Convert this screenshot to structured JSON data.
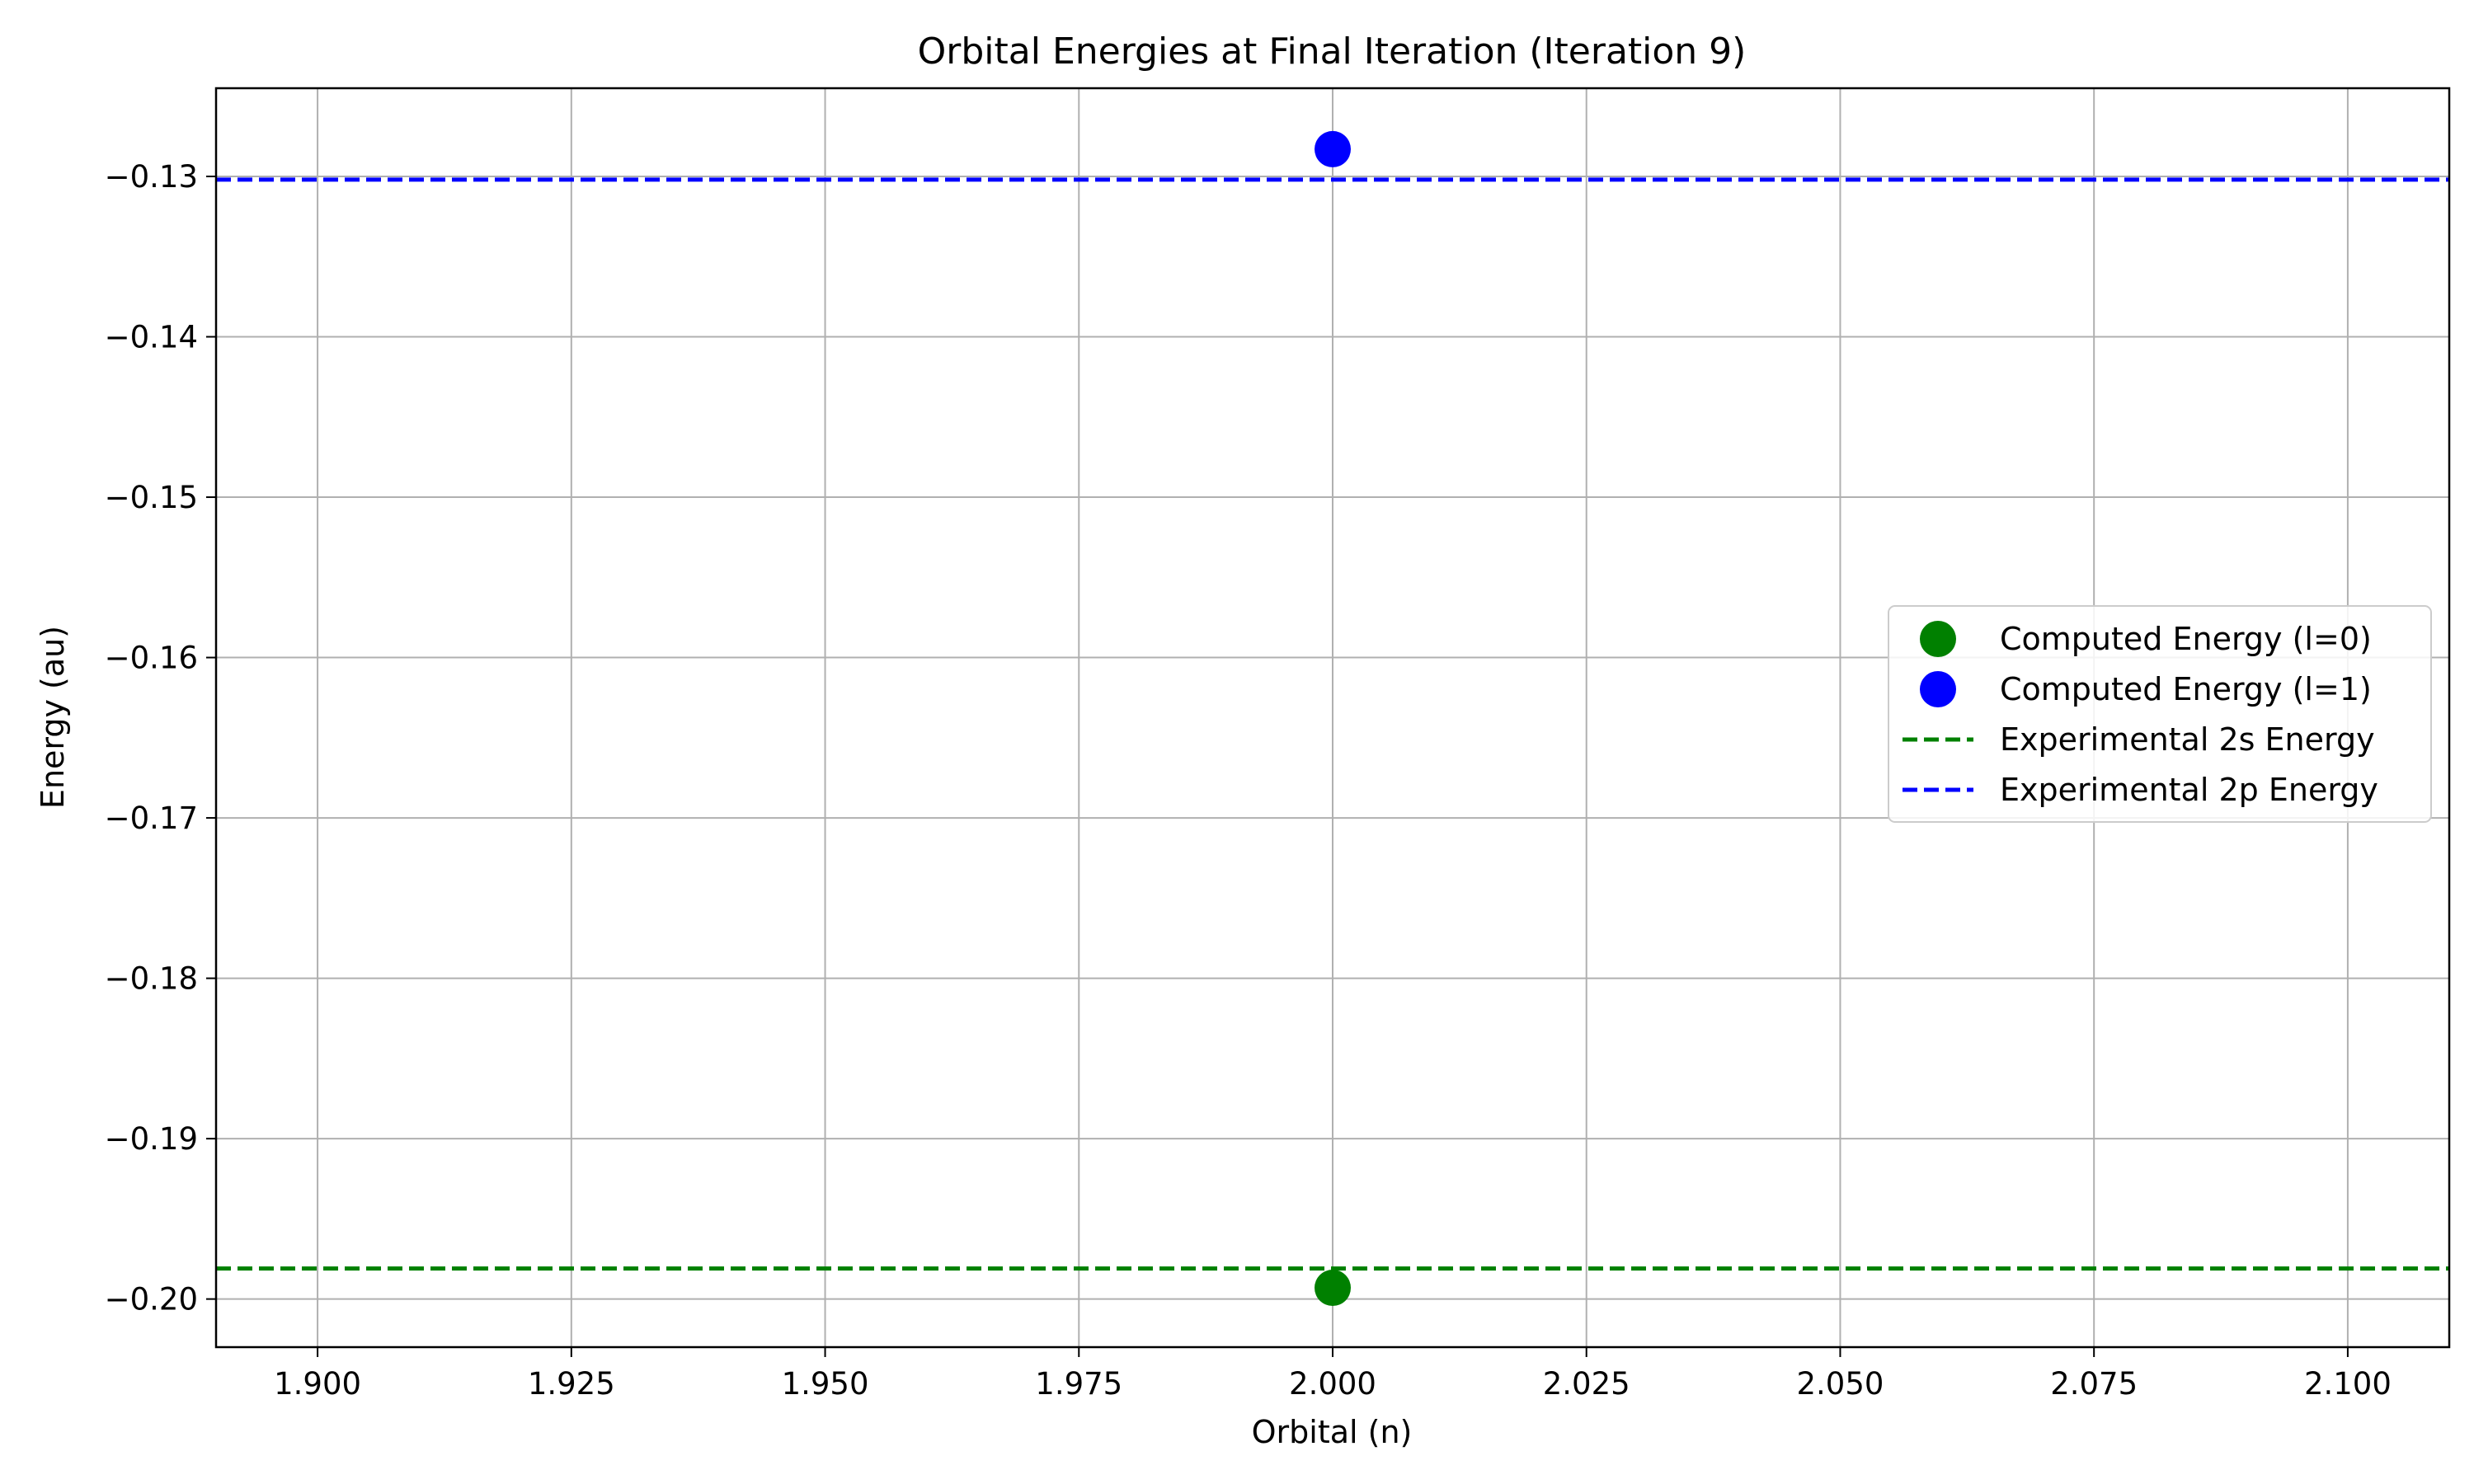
{
  "chart_data": {
    "type": "scatter",
    "title": "Orbital Energies at Final Iteration (Iteration 9)",
    "xlabel": "Orbital (n)",
    "ylabel": "Energy (au)",
    "xlim": [
      1.89,
      2.11
    ],
    "ylim": [
      -0.203,
      -0.1245
    ],
    "x_ticks": [
      1.9,
      1.925,
      1.95,
      1.975,
      2.0,
      2.025,
      2.05,
      2.075,
      2.1
    ],
    "x_tick_labels": [
      "1.900",
      "1.925",
      "1.950",
      "1.975",
      "2.000",
      "2.025",
      "2.050",
      "2.075",
      "2.100"
    ],
    "y_ticks": [
      -0.13,
      -0.14,
      -0.15,
      -0.16,
      -0.17,
      -0.18,
      -0.19,
      -0.2
    ],
    "y_tick_labels": [
      "−0.13",
      "−0.14",
      "−0.15",
      "−0.16",
      "−0.17",
      "−0.18",
      "−0.19",
      "−0.20"
    ],
    "grid": true,
    "legend_position": "center-right",
    "series": [
      {
        "name": "Computed Energy (l=0)",
        "kind": "scatter",
        "color": "#008000",
        "points": [
          {
            "x": 2.0,
            "y": -0.1993
          }
        ]
      },
      {
        "name": "Computed Energy (l=1)",
        "kind": "scatter",
        "color": "#0000ff",
        "points": [
          {
            "x": 2.0,
            "y": -0.1283
          }
        ]
      },
      {
        "name": "Experimental 2s Energy",
        "kind": "hline",
        "style": "dashed",
        "color": "#008000",
        "y": -0.1981
      },
      {
        "name": "Experimental 2p Energy",
        "kind": "hline",
        "style": "dashed",
        "color": "#0000ff",
        "y": -0.1302
      }
    ]
  }
}
